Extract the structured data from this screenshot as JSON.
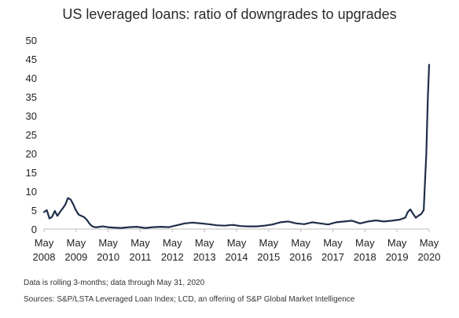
{
  "chart_data": {
    "type": "line",
    "title": "US leveraged loans: ratio of downgrades to upgrades",
    "xlabel": "",
    "ylabel": "",
    "ylim": [
      0,
      50
    ],
    "yticks": [
      0,
      5,
      10,
      15,
      20,
      25,
      30,
      35,
      40,
      45,
      50
    ],
    "xlim": [
      2008.33,
      2020.42
    ],
    "xtick_labels": [
      [
        "May",
        "2008"
      ],
      [
        "May",
        "2009"
      ],
      [
        "May",
        "2010"
      ],
      [
        "May",
        "2011"
      ],
      [
        "May",
        "2012"
      ],
      [
        "May",
        "2013"
      ],
      [
        "May",
        "2014"
      ],
      [
        "May",
        "2015"
      ],
      [
        "May",
        "2016"
      ],
      [
        "May",
        "2017"
      ],
      [
        "May",
        "2018"
      ],
      [
        "May",
        "2019"
      ],
      [
        "May",
        "2020"
      ]
    ],
    "grid": false,
    "legend": "none",
    "line_color": "#1f2f4a",
    "series": [
      {
        "x": [
          2008.33,
          2008.42,
          2008.5,
          2008.58,
          2008.67,
          2008.75,
          2008.83,
          2008.92,
          2009.0,
          2009.08,
          2009.17,
          2009.25,
          2009.33,
          2009.42,
          2009.5,
          2009.58,
          2009.67,
          2009.75,
          2009.83,
          2009.92,
          2010.0,
          2010.17,
          2010.33,
          2010.5,
          2010.75,
          2011.0,
          2011.25,
          2011.5,
          2011.75,
          2012.0,
          2012.25,
          2012.5,
          2012.75,
          2013.0,
          2013.25,
          2013.5,
          2013.75,
          2014.0,
          2014.25,
          2014.5,
          2014.75,
          2015.0,
          2015.25,
          2015.5,
          2015.75,
          2016.0,
          2016.25,
          2016.5,
          2016.75,
          2017.0,
          2017.25,
          2017.5,
          2017.75,
          2018.0,
          2018.25,
          2018.5,
          2018.75,
          2019.0,
          2019.25,
          2019.5,
          2019.67,
          2019.75,
          2019.83,
          2019.92,
          2020.0,
          2020.08,
          2020.17,
          2020.25,
          2020.33,
          2020.38,
          2020.42
        ],
        "values": [
          4.5,
          5.0,
          2.8,
          3.2,
          4.8,
          3.5,
          4.5,
          5.5,
          6.5,
          8.2,
          7.8,
          6.5,
          5.0,
          3.8,
          3.5,
          3.2,
          2.5,
          1.5,
          0.8,
          0.5,
          0.5,
          0.7,
          0.5,
          0.4,
          0.3,
          0.5,
          0.6,
          0.3,
          0.5,
          0.6,
          0.5,
          1.0,
          1.5,
          1.7,
          1.5,
          1.3,
          1.0,
          0.9,
          1.1,
          0.8,
          0.7,
          0.7,
          0.9,
          1.2,
          1.8,
          2.0,
          1.5,
          1.3,
          1.8,
          1.5,
          1.2,
          1.8,
          2.0,
          2.2,
          1.5,
          2.0,
          2.3,
          2.0,
          2.2,
          2.5,
          3.0,
          4.5,
          5.2,
          4.0,
          3.0,
          3.5,
          4.0,
          5.0,
          20.0,
          35.0,
          43.5
        ]
      }
    ]
  },
  "notes": {
    "data_note": "Data is rolling 3-months; data through May 31, 2020",
    "sources": "Sources: S&P/LSTA Leveraged Loan Index; LCD, an offering of S&P Global Market Intelligence"
  }
}
